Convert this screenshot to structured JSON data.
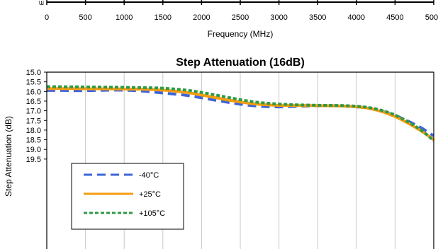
{
  "top_axis": {
    "tick_labels": [
      "0",
      "500",
      "1000",
      "1500",
      "2000",
      "2500",
      "3000",
      "3500",
      "4000",
      "4500",
      "5000"
    ],
    "xlabel": "Frequency (MHz)"
  },
  "chart_data": {
    "type": "line",
    "title": "Step Attenuation (16dB)",
    "xlabel": "",
    "ylabel": "Step Attenuation (dB)",
    "xlim": [
      0,
      5000
    ],
    "ylim": [
      15.0,
      19.5
    ],
    "y_reversed": true,
    "y_tick_labels": [
      "15.0",
      "15.5",
      "16.0",
      "16.5",
      "17.0",
      "17.5",
      "18.0",
      "18.5",
      "19.0",
      "19.5"
    ],
    "grid": "vertical",
    "legend_position": "lower-left",
    "series": [
      {
        "name": "-40°C",
        "color": "#3f64d8",
        "dash": "long-dash",
        "points": [
          [
            0,
            15.95
          ],
          [
            200,
            15.95
          ],
          [
            500,
            15.96
          ],
          [
            900,
            15.93
          ],
          [
            1200,
            15.97
          ],
          [
            1500,
            16.08
          ],
          [
            1800,
            16.2
          ],
          [
            2100,
            16.4
          ],
          [
            2400,
            16.6
          ],
          [
            2700,
            16.75
          ],
          [
            3000,
            16.8
          ],
          [
            3300,
            16.76
          ],
          [
            3600,
            16.74
          ],
          [
            3900,
            16.77
          ],
          [
            4200,
            16.9
          ],
          [
            4500,
            17.25
          ],
          [
            4800,
            17.8
          ],
          [
            5000,
            18.3
          ]
        ]
      },
      {
        "name": "+25°C",
        "color": "#f59d10",
        "dash": "solid",
        "points": [
          [
            0,
            15.85
          ],
          [
            300,
            15.85
          ],
          [
            600,
            15.86
          ],
          [
            900,
            15.87
          ],
          [
            1200,
            15.88
          ],
          [
            1500,
            15.93
          ],
          [
            1800,
            16.05
          ],
          [
            2100,
            16.26
          ],
          [
            2400,
            16.48
          ],
          [
            2700,
            16.65
          ],
          [
            3000,
            16.72
          ],
          [
            3300,
            16.73
          ],
          [
            3600,
            16.74
          ],
          [
            3900,
            16.77
          ],
          [
            4200,
            16.9
          ],
          [
            4500,
            17.3
          ],
          [
            4800,
            17.95
          ],
          [
            5000,
            18.5
          ]
        ]
      },
      {
        "name": "+105°C",
        "color": "#2e9a45",
        "dash": "dotted",
        "points": [
          [
            0,
            15.75
          ],
          [
            300,
            15.76
          ],
          [
            600,
            15.77
          ],
          [
            900,
            15.78
          ],
          [
            1200,
            15.8
          ],
          [
            1500,
            15.83
          ],
          [
            1800,
            15.93
          ],
          [
            2100,
            16.12
          ],
          [
            2400,
            16.35
          ],
          [
            2700,
            16.55
          ],
          [
            3000,
            16.65
          ],
          [
            3300,
            16.7
          ],
          [
            3600,
            16.72
          ],
          [
            3900,
            16.74
          ],
          [
            4200,
            16.86
          ],
          [
            4500,
            17.22
          ],
          [
            4800,
            17.9
          ],
          [
            5000,
            18.55
          ]
        ]
      }
    ]
  }
}
